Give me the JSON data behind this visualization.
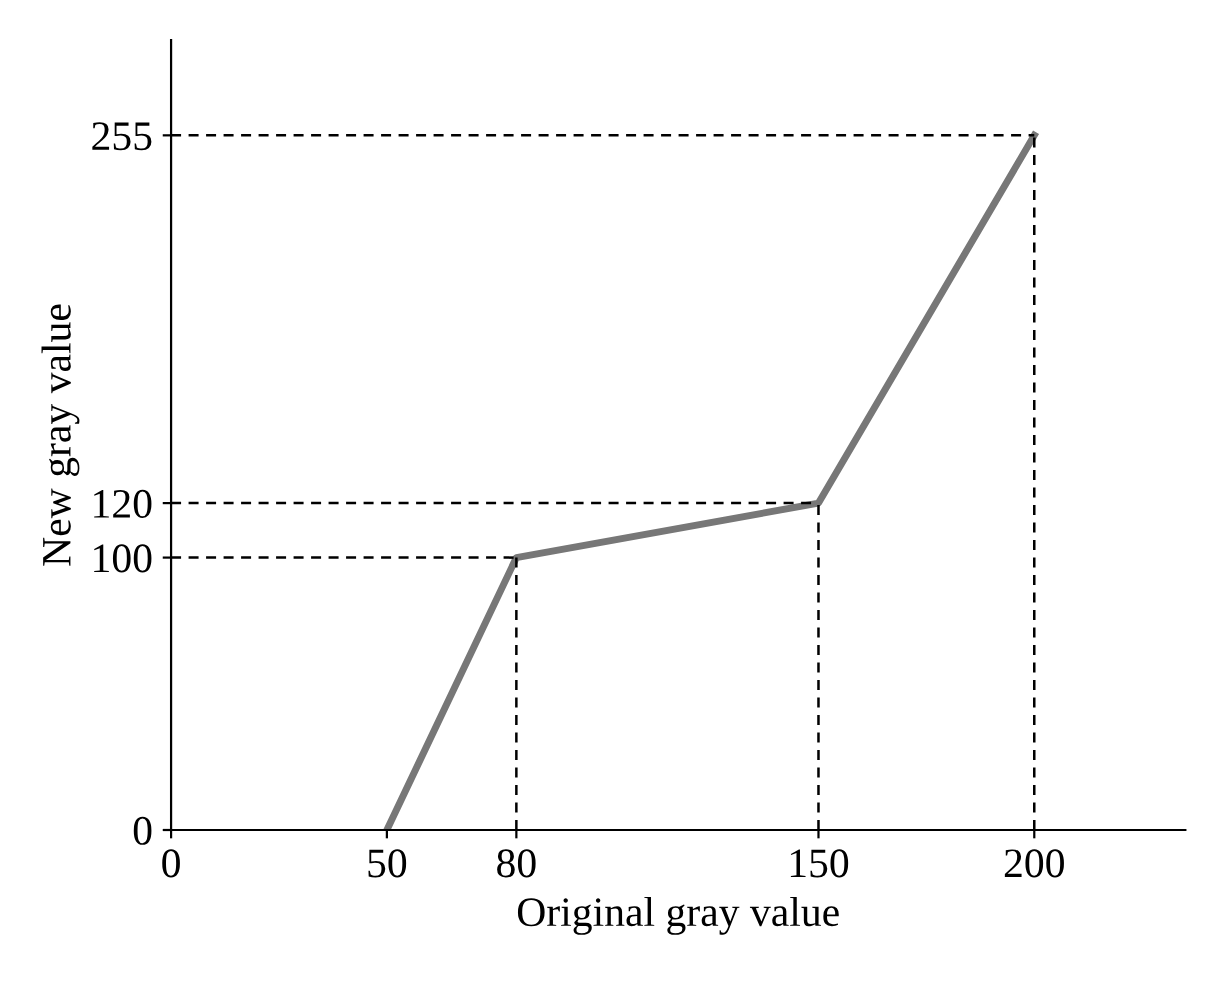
{
  "chart_data": {
    "type": "line",
    "xlabel": "Original gray value",
    "ylabel": "New gray value",
    "x": [
      50,
      80,
      150,
      200
    ],
    "series": [
      {
        "color": "#777777",
        "values": [
          0,
          100,
          120,
          255
        ]
      }
    ],
    "xlim": [
      0,
      235
    ],
    "ylim": [
      0,
      290
    ],
    "xticks": [
      0,
      50,
      80,
      150,
      200
    ],
    "yticks": [
      0,
      100,
      120,
      255
    ],
    "ref_lines": [
      {
        "axis": "x",
        "value": 80
      },
      {
        "axis": "x",
        "value": 150
      },
      {
        "axis": "x",
        "value": 200
      },
      {
        "axis": "y",
        "value": 100
      },
      {
        "axis": "y",
        "value": 120
      },
      {
        "axis": "y",
        "value": 255
      }
    ],
    "legend": false,
    "marker": "none",
    "line_style": "solid"
  }
}
